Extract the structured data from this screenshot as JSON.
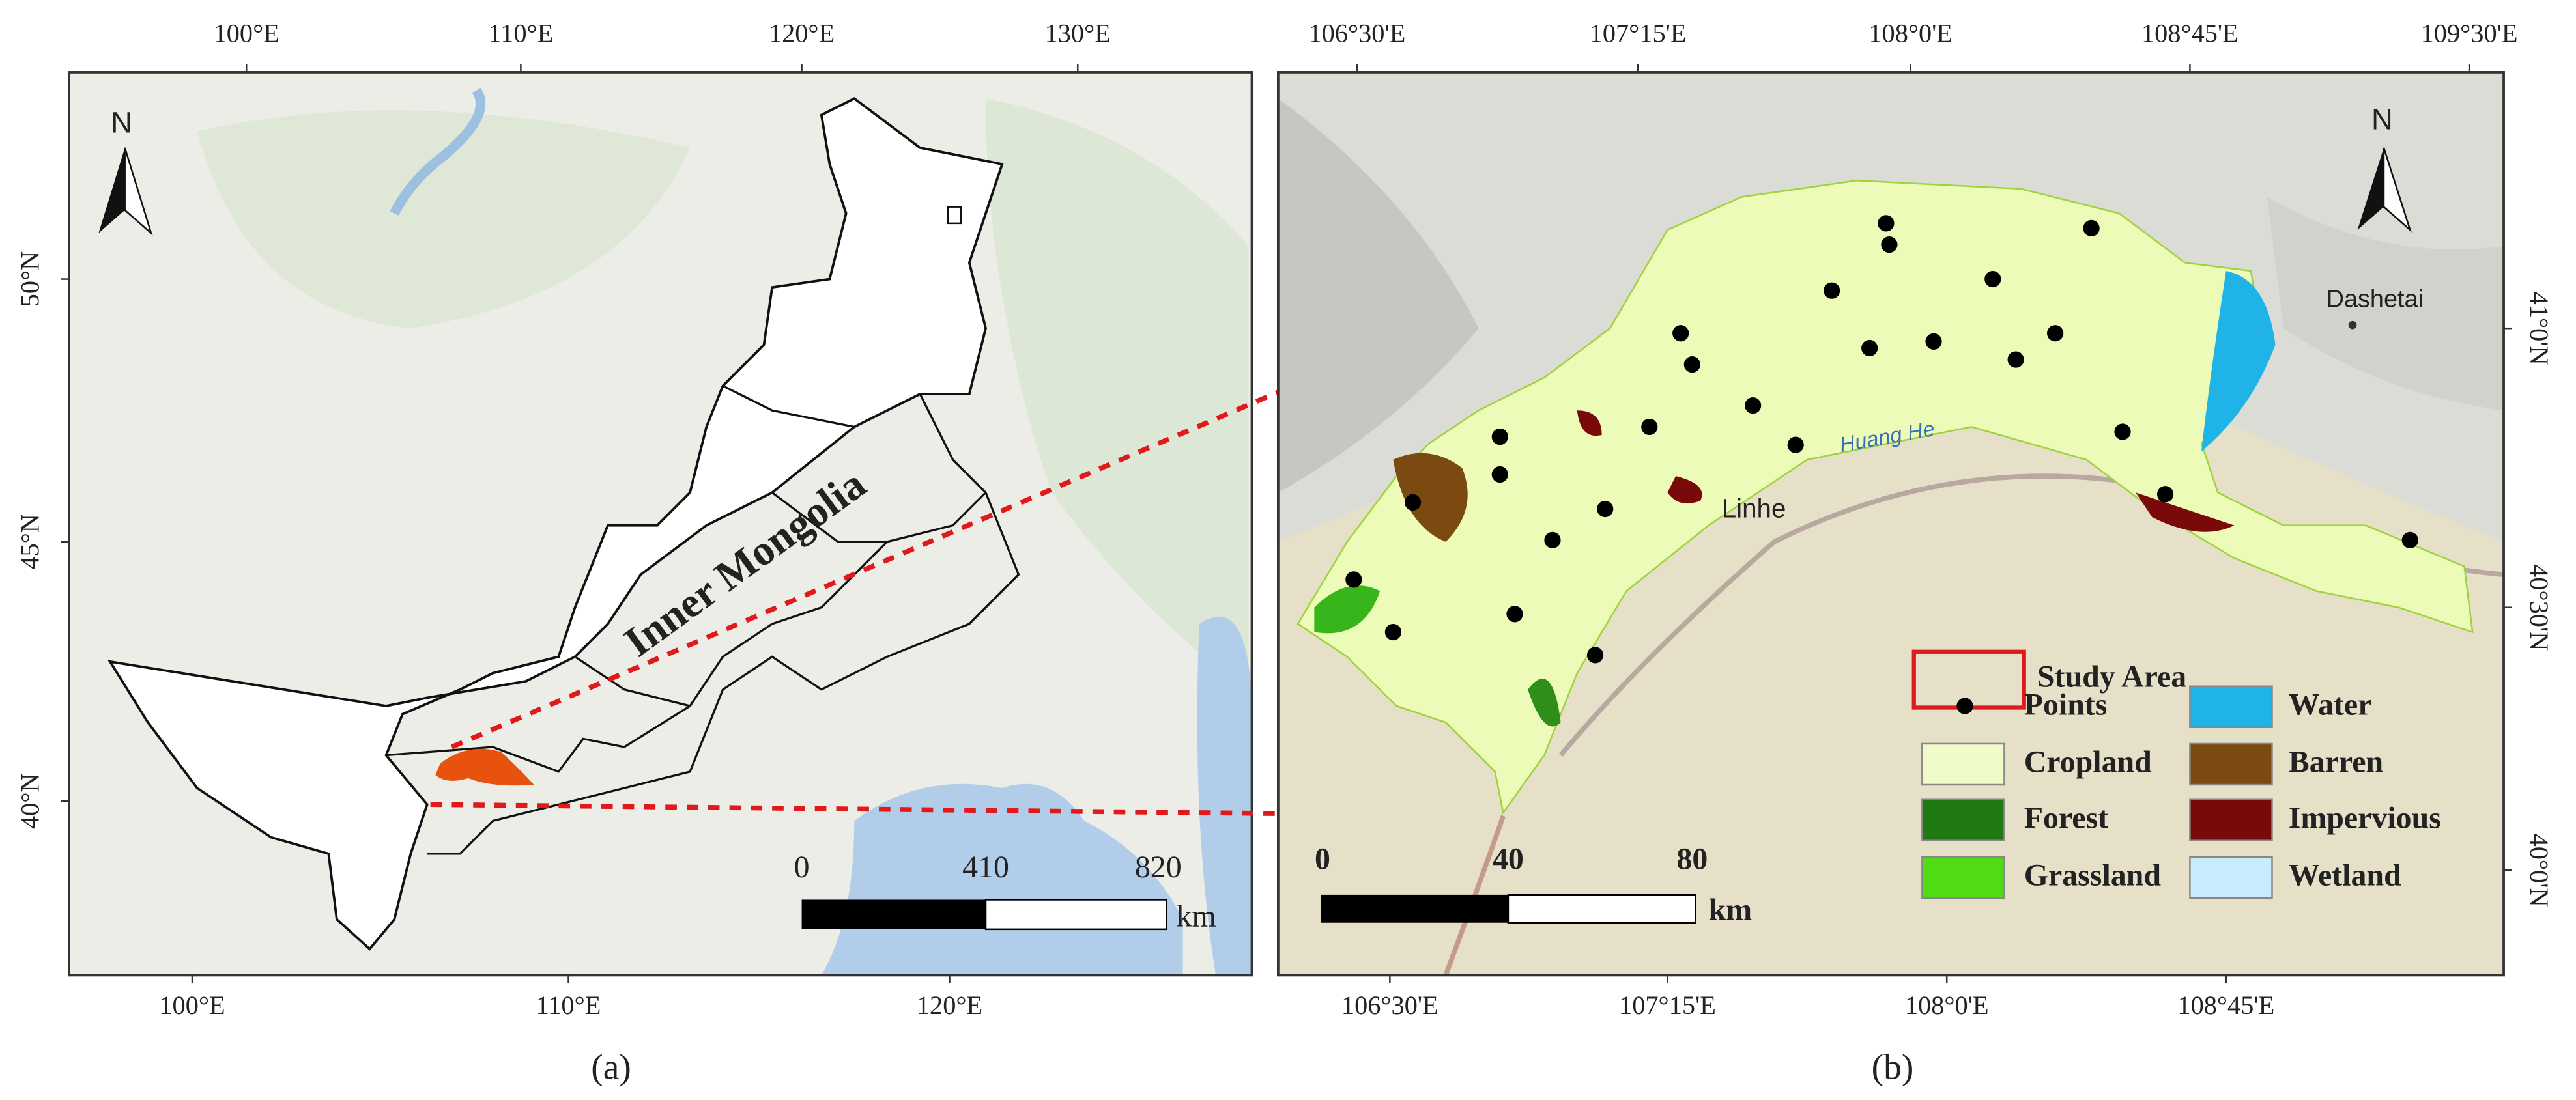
{
  "panel_a": {
    "top_ticks": [
      "100°E",
      "110°E",
      "120°E",
      "130°E"
    ],
    "bottom_ticks": [
      "100°E",
      "110°E",
      "120°E"
    ],
    "left_ticks": [
      "50°N",
      "45°N",
      "40°N"
    ],
    "region_label": "Inner Mongolia",
    "north": "N",
    "scale_labels": [
      "0",
      "410",
      "820"
    ],
    "scale_unit": "km",
    "caption": "(a)"
  },
  "panel_b": {
    "top_ticks": [
      "106°30'E",
      "107°15'E",
      "108°0'E",
      "108°45'E",
      "109°30'E"
    ],
    "bottom_ticks": [
      "106°30'E",
      "107°15'E",
      "108°0'E",
      "108°45'E"
    ],
    "right_ticks": [
      "41°0'N",
      "40°30'N",
      "40°0'N"
    ],
    "places": [
      "Linhe",
      "Huang He",
      "Dashetai"
    ],
    "north": "N",
    "scale_labels": [
      "0",
      "40",
      "80"
    ],
    "scale_unit": "km",
    "legend": [
      "Study Area",
      "Points",
      "Water",
      "Cropland",
      "Barren",
      "Forest",
      "Impervious",
      "Grassland",
      "Wetland"
    ],
    "caption": "(b)"
  }
}
